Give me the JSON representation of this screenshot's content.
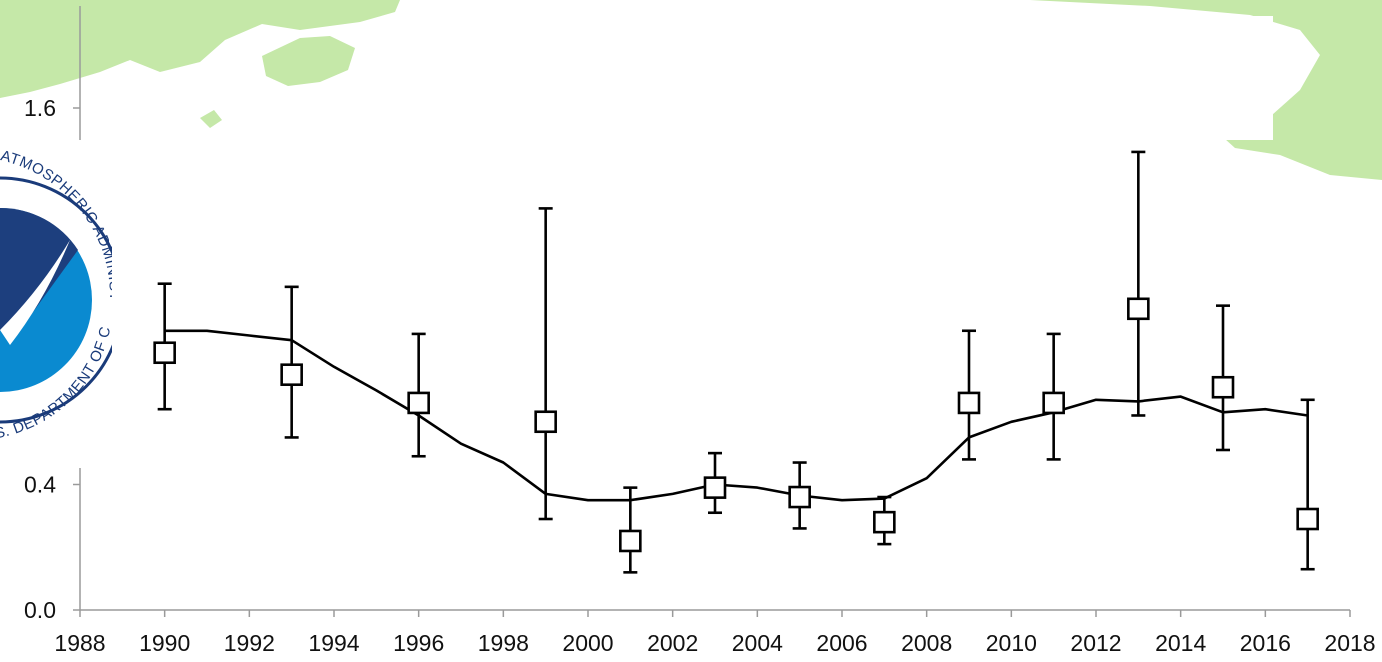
{
  "background": {
    "map_color": "#c5e8a8",
    "seal_text_top": "ATMOSPHERIC ADMINISTRATION",
    "seal_text_bottom": "U.S. DEPARTMENT OF COMMERCE"
  },
  "chart_data": {
    "type": "line",
    "title": "",
    "xlabel": "",
    "ylabel": "",
    "xlim": [
      1988,
      2018
    ],
    "ylim": [
      0,
      1.6
    ],
    "x_ticks": [
      1988,
      1990,
      1992,
      1994,
      1996,
      1998,
      2000,
      2002,
      2004,
      2006,
      2008,
      2010,
      2012,
      2014,
      2016,
      2018
    ],
    "y_ticks_visible": [
      "0.0",
      "0.4",
      "1.6"
    ],
    "series": [
      {
        "kind": "line",
        "points": [
          [
            1990,
            0.89
          ],
          [
            1991,
            0.89
          ],
          [
            1992,
            0.875
          ],
          [
            1993,
            0.86
          ],
          [
            1994,
            0.775
          ],
          [
            1995,
            0.7
          ],
          [
            1996,
            0.62
          ],
          [
            1997,
            0.53
          ],
          [
            1998,
            0.47
          ],
          [
            1999,
            0.37
          ],
          [
            2000,
            0.35
          ],
          [
            2001,
            0.35
          ],
          [
            2002,
            0.37
          ],
          [
            2003,
            0.4
          ],
          [
            2004,
            0.39
          ],
          [
            2005,
            0.365
          ],
          [
            2006,
            0.35
          ],
          [
            2007,
            0.355
          ],
          [
            2008,
            0.42
          ],
          [
            2009,
            0.55
          ],
          [
            2010,
            0.6
          ],
          [
            2011,
            0.63
          ],
          [
            2012,
            0.67
          ],
          [
            2013,
            0.665
          ],
          [
            2014,
            0.68
          ],
          [
            2015,
            0.63
          ],
          [
            2016,
            0.64
          ],
          [
            2017,
            0.62
          ]
        ]
      },
      {
        "kind": "points_with_error_bars",
        "marker": "open-square",
        "points": [
          {
            "x": 1990,
            "y": 0.82,
            "low": 0.64,
            "high": 1.04
          },
          {
            "x": 1993,
            "y": 0.75,
            "low": 0.55,
            "high": 1.03
          },
          {
            "x": 1996,
            "y": 0.66,
            "low": 0.49,
            "high": 0.88
          },
          {
            "x": 1999,
            "y": 0.6,
            "low": 0.29,
            "high": 1.28
          },
          {
            "x": 2001,
            "y": 0.22,
            "low": 0.12,
            "high": 0.39
          },
          {
            "x": 2003,
            "y": 0.39,
            "low": 0.31,
            "high": 0.5
          },
          {
            "x": 2005,
            "y": 0.36,
            "low": 0.26,
            "high": 0.47
          },
          {
            "x": 2007,
            "y": 0.28,
            "low": 0.21,
            "high": 0.36
          },
          {
            "x": 2009,
            "y": 0.66,
            "low": 0.48,
            "high": 0.89
          },
          {
            "x": 2011,
            "y": 0.66,
            "low": 0.48,
            "high": 0.88
          },
          {
            "x": 2013,
            "y": 0.96,
            "low": 0.62,
            "high": 1.46
          },
          {
            "x": 2015,
            "y": 0.71,
            "low": 0.51,
            "high": 0.97
          },
          {
            "x": 2017,
            "y": 0.29,
            "low": 0.13,
            "high": 0.67
          }
        ]
      }
    ],
    "grid": false,
    "legend": "none"
  }
}
